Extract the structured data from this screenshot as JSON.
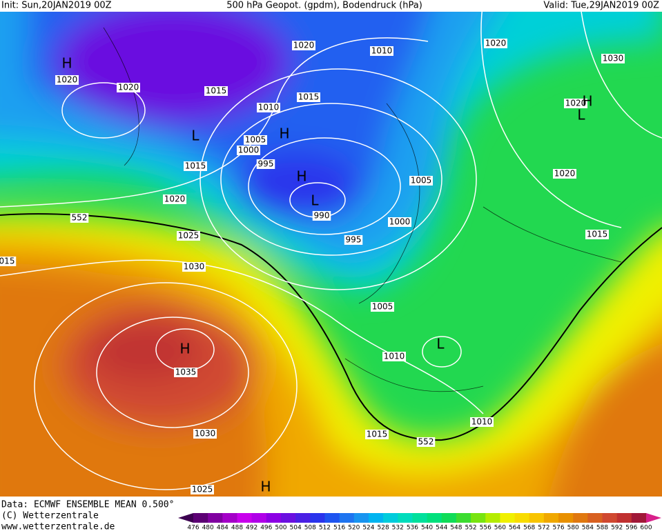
{
  "header": {
    "init": "Init: Sun,20JAN2019 00Z",
    "title": "500 hPa Geopot. (gpdm), Bodendruck (hPa)",
    "valid": "Valid: Tue,29JAN2019 00Z"
  },
  "isobar_labels": [
    "1020",
    "1020",
    "1015",
    "1020",
    "1010",
    "1020",
    "1030",
    "1015",
    "1010",
    "1005",
    "1000",
    "995",
    "1015",
    "1005",
    "1020",
    "1020",
    "552",
    "990",
    "1000",
    "995",
    "1025",
    "1015",
    "015",
    "1030",
    "1005",
    "1010",
    "1035",
    "1010",
    "1030",
    "1015",
    "552",
    "1025",
    "1020"
  ],
  "pressure_centers": [
    "H",
    "H",
    "L",
    "H",
    "H",
    "L",
    "L",
    "H",
    "L",
    "H"
  ],
  "footer": {
    "data": "Data: ECMWF ENSEMBLE MEAN 0.500°",
    "copyright": "(C) Wetterzentrale",
    "url": "www.wetterzentrale.de"
  },
  "legend": {
    "labels": [
      476,
      480,
      484,
      488,
      492,
      496,
      500,
      504,
      508,
      512,
      516,
      520,
      524,
      528,
      532,
      536,
      540,
      544,
      548,
      552,
      556,
      560,
      564,
      568,
      572,
      576,
      580,
      584,
      588,
      592,
      596,
      600
    ],
    "colors": [
      "#3c0050",
      "#5c0074",
      "#8000a0",
      "#a400c8",
      "#c800ec",
      "#b000e8",
      "#8c00e4",
      "#6a10e0",
      "#4a20e4",
      "#2a34ec",
      "#1e54f0",
      "#1e74f0",
      "#1894f0",
      "#00b4f0",
      "#00ccdc",
      "#00dcbc",
      "#00e09c",
      "#00e07c",
      "#10dc58",
      "#3cdc30",
      "#78e410",
      "#b4ec00",
      "#f0f000",
      "#f8dc00",
      "#f8c400",
      "#f0a800",
      "#e89000",
      "#e07810",
      "#d86020",
      "#d04830",
      "#c03030",
      "#a01838",
      "#d8208a"
    ]
  }
}
